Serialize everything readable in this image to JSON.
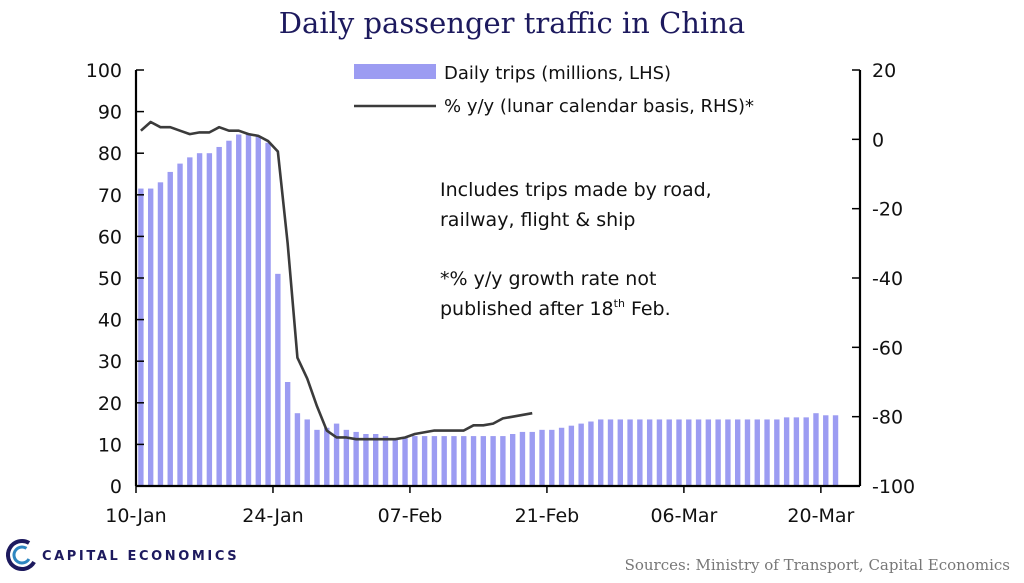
{
  "title": "Daily passenger traffic in China",
  "source": "Sources: Ministry of Transport, Capital Economics",
  "brand": {
    "name": "CAPITAL ECONOMICS",
    "logo_letter": "C"
  },
  "notes": {
    "line1": "Includes  trips  made by  road,",
    "line2": "railway,  flight  &  ship",
    "line3": "*%  y/y growth  rate not",
    "line4_pre": "published   after 18",
    "line4_sup": "th",
    "line4_post": "  Feb."
  },
  "colors": {
    "bar": "#9c9cf2",
    "line": "#3b3b3b",
    "title": "#1d1a5e"
  },
  "chart_data": {
    "type": "bar",
    "title": "Daily passenger traffic in China",
    "x_tick_labels": [
      "10-Jan",
      "24-Jan",
      "07-Feb",
      "21-Feb",
      "06-Mar",
      "20-Mar"
    ],
    "x_ticks_day": [
      0,
      14,
      28,
      42,
      56,
      70
    ],
    "x_range_days": [
      0,
      74
    ],
    "y_left": {
      "range": [
        0,
        100
      ],
      "ticks": [
        "0",
        "10",
        "20",
        "30",
        "40",
        "50",
        "60",
        "70",
        "80",
        "90",
        "100"
      ],
      "label": ""
    },
    "y_right": {
      "range": [
        -100,
        20
      ],
      "ticks": [
        "20",
        "0",
        "-20",
        "-40",
        "-60",
        "-80",
        "-100"
      ],
      "label": ""
    },
    "legend": {
      "position": "top-center"
    },
    "series": [
      {
        "name": "Daily trips (millions, LHS)",
        "type": "bar",
        "axis": "left",
        "start_date": "10-Jan",
        "values": [
          71.5,
          71.5,
          73,
          75.5,
          77.5,
          79,
          80,
          80,
          81.5,
          83,
          84.5,
          84.5,
          84,
          82.5,
          51,
          25,
          17.5,
          16,
          13.5,
          14,
          15,
          13.5,
          13,
          12.5,
          12.5,
          12,
          11.5,
          11.5,
          12,
          12,
          12,
          12,
          12,
          12,
          12,
          12,
          12,
          12,
          12.5,
          13,
          13,
          13.5,
          13.5,
          14,
          14.5,
          15,
          15.5,
          16,
          16,
          16,
          16,
          16,
          16,
          16,
          16,
          16,
          16,
          16,
          16,
          16,
          16,
          16,
          16,
          16,
          16,
          16,
          16.5,
          16.5,
          16.5,
          17.5,
          17,
          17
        ]
      },
      {
        "name": "% y/y (lunar calendar basis, RHS)*",
        "type": "line",
        "axis": "right",
        "start_date": "10-Jan",
        "values": [
          2.5,
          5,
          3.5,
          3.5,
          2.5,
          1.5,
          2,
          2,
          3.5,
          2.5,
          2.5,
          1.5,
          1,
          -0.5,
          -3.5,
          -30,
          -63,
          -69,
          -77,
          -84,
          -86,
          -86,
          -86.5,
          -86.5,
          -86.5,
          -86.5,
          -86.5,
          -86,
          -85,
          -84.5,
          -84,
          -84,
          -84,
          -84,
          -82.5,
          -82.5,
          -82,
          -80.5,
          -80,
          -79.5,
          -79
        ]
      }
    ]
  }
}
